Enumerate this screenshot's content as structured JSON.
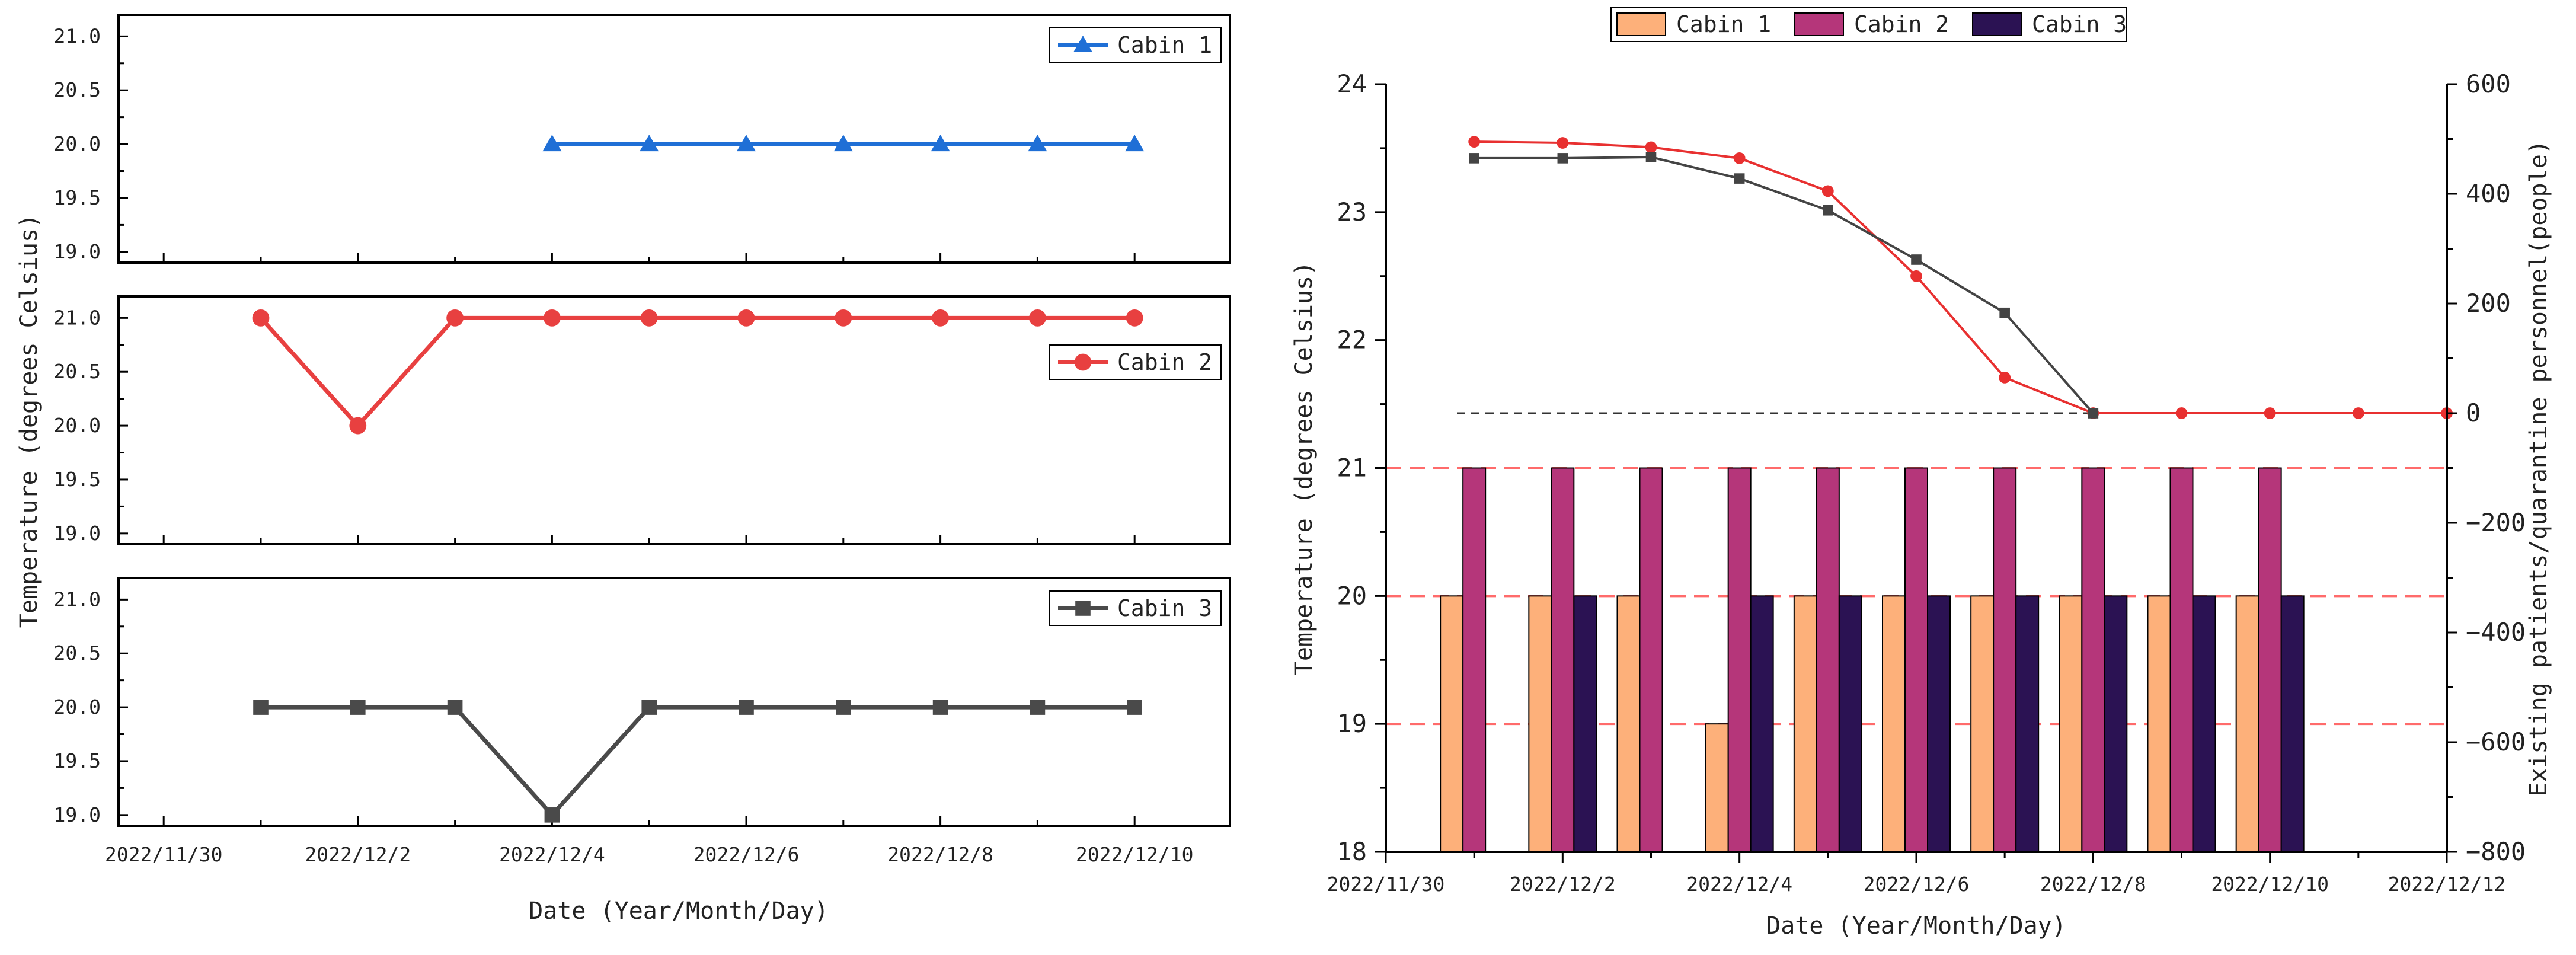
{
  "chart_data": [
    {
      "type": "line",
      "panel": "left-top",
      "series": [
        {
          "name": "Cabin 1",
          "values": [
            null,
            null,
            null,
            20.0,
            20.0,
            20.0,
            20.0,
            20.0,
            20.0,
            20.0
          ],
          "color": "#1f6fd6",
          "marker": "triangle"
        }
      ],
      "x": [
        "2022/12/1",
        "2022/12/2",
        "2022/12/3",
        "2022/12/4",
        "2022/12/5",
        "2022/12/6",
        "2022/12/7",
        "2022/12/8",
        "2022/12/9",
        "2022/12/10"
      ],
      "ylim": [
        18.9,
        21.2
      ],
      "yticks": [
        "19.0",
        "19.5",
        "20.0",
        "20.5",
        "21.0"
      ],
      "legend": "top-right"
    },
    {
      "type": "line",
      "panel": "left-middle",
      "series": [
        {
          "name": "Cabin 2",
          "values": [
            21.0,
            20.0,
            21.0,
            21.0,
            21.0,
            21.0,
            21.0,
            21.0,
            21.0,
            21.0
          ],
          "color": "#e84040",
          "marker": "circle"
        }
      ],
      "x": [
        "2022/12/1",
        "2022/12/2",
        "2022/12/3",
        "2022/12/4",
        "2022/12/5",
        "2022/12/6",
        "2022/12/7",
        "2022/12/8",
        "2022/12/9",
        "2022/12/10"
      ],
      "ylim": [
        18.9,
        21.2
      ],
      "yticks": [
        "19.0",
        "19.5",
        "20.0",
        "20.5",
        "21.0"
      ],
      "legend": "right"
    },
    {
      "type": "line",
      "panel": "left-bottom",
      "series": [
        {
          "name": "Cabin 3",
          "values": [
            20.0,
            20.0,
            20.0,
            19.0,
            20.0,
            20.0,
            20.0,
            20.0,
            20.0,
            20.0
          ],
          "color": "#4a4a4a",
          "marker": "square"
        }
      ],
      "x": [
        "2022/12/1",
        "2022/12/2",
        "2022/12/3",
        "2022/12/4",
        "2022/12/5",
        "2022/12/6",
        "2022/12/7",
        "2022/12/8",
        "2022/12/9",
        "2022/12/10"
      ],
      "ylim": [
        18.9,
        21.2
      ],
      "yticks": [
        "19.0",
        "19.5",
        "20.0",
        "20.5",
        "21.0"
      ],
      "xticks": [
        "2022/11/30",
        "2022/12/2",
        "2022/12/4",
        "2022/12/6",
        "2022/12/8",
        "2022/12/10"
      ],
      "xlabel": "Date (Year/Month/Day)",
      "ylabel": "Temperature (degrees Celsius)",
      "legend": "top-right"
    },
    {
      "type": "bar",
      "panel": "right",
      "categories": [
        "2022/12/1",
        "2022/12/2",
        "2022/12/3",
        "2022/12/4",
        "2022/12/5",
        "2022/12/6",
        "2022/12/7",
        "2022/12/8",
        "2022/12/9",
        "2022/12/10"
      ],
      "series": [
        {
          "name": "Cabin 1",
          "values": [
            20,
            20,
            20,
            19,
            20,
            20,
            20,
            20,
            20,
            20
          ],
          "color": "#fdb07a"
        },
        {
          "name": "Cabin 2",
          "values": [
            21,
            21,
            21,
            21,
            21,
            21,
            21,
            21,
            21,
            21
          ],
          "color": "#b5367a"
        },
        {
          "name": "Cabin 3",
          "values": [
            null,
            20,
            null,
            20,
            20,
            20,
            20,
            20,
            20,
            20
          ],
          "color": "#2b1253"
        }
      ],
      "lines": [
        {
          "name": "Existing patients",
          "axis": "right",
          "color": "#e83030",
          "marker": "circle",
          "x": [
            "2022/12/1",
            "2022/12/2",
            "2022/12/3",
            "2022/12/4",
            "2022/12/5",
            "2022/12/6",
            "2022/12/7",
            "2022/12/8",
            "2022/12/9",
            "2022/12/10",
            "2022/12/11",
            "2022/12/12"
          ],
          "values": [
            495,
            493,
            485,
            465,
            405,
            250,
            65,
            0,
            0,
            0,
            0,
            0
          ]
        },
        {
          "name": "Quarantine personnel",
          "axis": "right",
          "color": "#444444",
          "marker": "square",
          "x": [
            "2022/12/1",
            "2022/12/2",
            "2022/12/3",
            "2022/12/4",
            "2022/12/5",
            "2022/12/6",
            "2022/12/7",
            "2022/12/8"
          ],
          "values": [
            465,
            465,
            467,
            428,
            370,
            280,
            183,
            0
          ]
        }
      ],
      "ylim": [
        18,
        24
      ],
      "yticks": [
        "18",
        "19",
        "20",
        "21",
        "22",
        "23",
        "24"
      ],
      "y2lim": [
        -800,
        600
      ],
      "y2ticks": [
        "−800",
        "−600",
        "−400",
        "−200",
        "0",
        "200",
        "400",
        "600"
      ],
      "xticks": [
        "2022/11/30",
        "2022/12/2",
        "2022/12/4",
        "2022/12/6",
        "2022/12/8",
        "2022/12/10",
        "2022/12/12"
      ],
      "xlabel": "Date (Year/Month/Day)",
      "ylabel": "Temperature (degrees Celsius)",
      "y2label": "Existing patients/quarantine personnel(people)",
      "reference_lines": {
        "temperature": [
          19,
          20,
          21
        ],
        "right_axis": [
          0
        ]
      },
      "legend": "top"
    }
  ]
}
